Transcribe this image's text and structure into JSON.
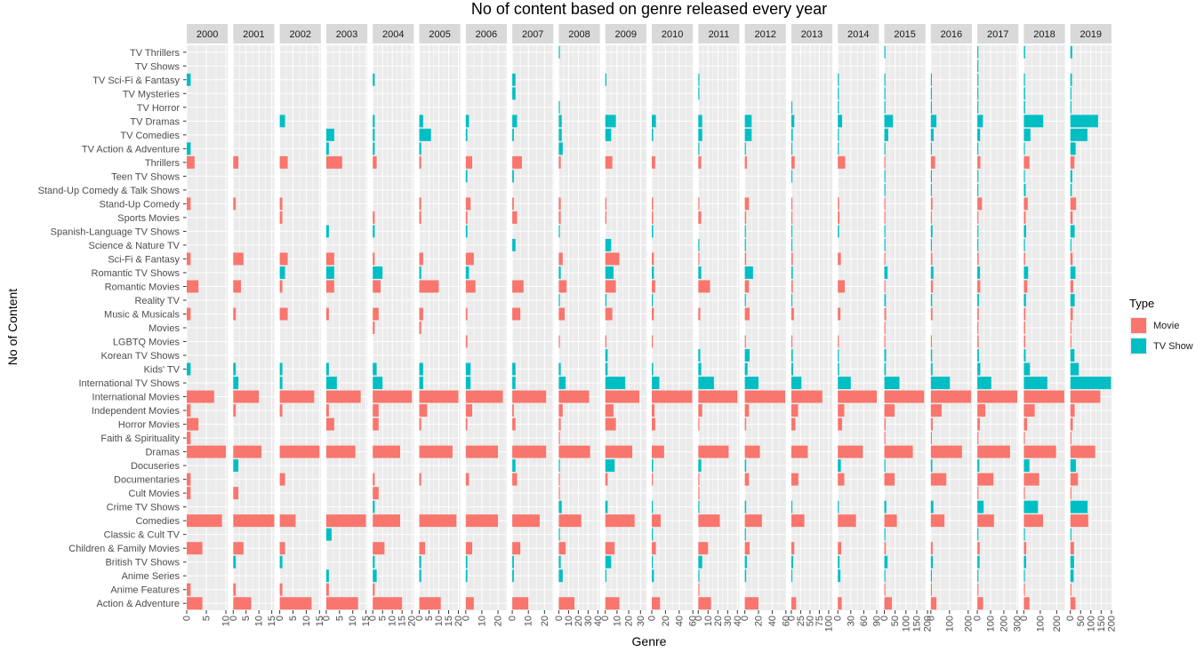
{
  "chart_data": {
    "type": "bar",
    "title": "No of content based on genre released every year",
    "xlabel": "Genre",
    "ylabel": "No of Content",
    "legend": {
      "title": "Type",
      "position": "right",
      "entries": [
        "Movie",
        "TV Show"
      ]
    },
    "colors": {
      "Movie": "#F8766D",
      "TV Show": "#00BFC4",
      "panel": "#EBEBEB",
      "strip": "#D9D9D9",
      "grid": "#FFFFFF"
    },
    "orientation": "horizontal-bars",
    "facets": [
      "2000",
      "2001",
      "2002",
      "2003",
      "2004",
      "2005",
      "2006",
      "2007",
      "2008",
      "2009",
      "2010",
      "2011",
      "2012",
      "2013",
      "2014",
      "2015",
      "2016",
      "2017",
      "2018",
      "2019"
    ],
    "categories": [
      "Action & Adventure",
      "Anime Features",
      "Anime Series",
      "British TV Shows",
      "Children & Family Movies",
      "Classic & Cult TV",
      "Comedies",
      "Crime TV Shows",
      "Cult Movies",
      "Documentaries",
      "Docuseries",
      "Dramas",
      "Faith & Spirituality",
      "Horror Movies",
      "Independent Movies",
      "International Movies",
      "International TV Shows",
      "Kids' TV",
      "Korean TV Shows",
      "LGBTQ Movies",
      "Movies",
      "Music & Musicals",
      "Reality TV",
      "Romantic Movies",
      "Romantic TV Shows",
      "Sci-Fi & Fantasy",
      "Science & Nature TV",
      "Spanish-Language TV Shows",
      "Sports Movies",
      "Stand-Up Comedy",
      "Stand-Up Comedy & Talk Shows",
      "Teen TV Shows",
      "Thrillers",
      "TV Action & Adventure",
      "TV Comedies",
      "TV Dramas",
      "TV Horror",
      "TV Mysteries",
      "TV Sci-Fi & Fantasy",
      "TV Shows",
      "TV Thrillers"
    ],
    "type_of": [
      "Movie",
      "Movie",
      "TV Show",
      "TV Show",
      "Movie",
      "TV Show",
      "Movie",
      "TV Show",
      "Movie",
      "Movie",
      "TV Show",
      "Movie",
      "Movie",
      "Movie",
      "Movie",
      "Movie",
      "TV Show",
      "TV Show",
      "TV Show",
      "Movie",
      "Movie",
      "Movie",
      "TV Show",
      "Movie",
      "TV Show",
      "Movie",
      "TV Show",
      "TV Show",
      "Movie",
      "Movie",
      "TV Show",
      "TV Show",
      "Movie",
      "TV Show",
      "TV Show",
      "TV Show",
      "TV Show",
      "TV Show",
      "TV Show",
      "TV Show",
      "TV Show"
    ],
    "panel_ticks": [
      [
        0,
        5,
        10
      ],
      [
        0,
        5,
        10,
        15
      ],
      [
        0,
        5,
        10,
        15
      ],
      [
        0,
        5,
        10,
        15
      ],
      [
        0,
        5,
        10,
        15,
        20
      ],
      [
        0,
        5,
        10,
        15,
        20
      ],
      [
        0,
        10,
        20
      ],
      [
        0,
        10,
        20
      ],
      [
        0,
        10,
        20,
        30,
        40
      ],
      [
        0,
        10,
        20,
        30
      ],
      [
        0,
        20,
        40,
        60
      ],
      [
        0,
        10,
        20,
        30,
        40
      ],
      [
        0,
        20,
        40,
        60
      ],
      [
        0,
        25,
        50,
        75,
        100
      ],
      [
        0,
        30,
        60,
        90
      ],
      [
        0,
        50,
        100,
        150,
        200
      ],
      [
        0,
        100,
        200
      ],
      [
        0,
        100,
        200,
        300
      ],
      [
        0,
        100,
        200
      ],
      [
        0,
        50,
        100,
        150,
        200
      ]
    ],
    "panel_xlim": [
      [
        0,
        10.5
      ],
      [
        0,
        16.0
      ],
      [
        0,
        15.5
      ],
      [
        0,
        15.5
      ],
      [
        0,
        21.0
      ],
      [
        0,
        21.0
      ],
      [
        0,
        25.5
      ],
      [
        0,
        25.5
      ],
      [
        0,
        42.0
      ],
      [
        0,
        35.0
      ],
      [
        0,
        60.0
      ],
      [
        0,
        42.0
      ],
      [
        0,
        60.0
      ],
      [
        0,
        110.0
      ],
      [
        0,
        95.0
      ],
      [
        0,
        190.0
      ],
      [
        0,
        220.0
      ],
      [
        0,
        310.0
      ],
      [
        0,
        250.0
      ],
      [
        0,
        200.0
      ]
    ],
    "values": [
      [
        4,
        1,
        0,
        0,
        4,
        0,
        9,
        0,
        1,
        1,
        0,
        10,
        1,
        3,
        1,
        7,
        0,
        1,
        0,
        0,
        0,
        1,
        0,
        3,
        0,
        1,
        0,
        0,
        0,
        1,
        0,
        0,
        2,
        1,
        0,
        0,
        0,
        0,
        1,
        0,
        0
      ],
      [
        7,
        1,
        0,
        1,
        4,
        0,
        16,
        0,
        2,
        0,
        2,
        11,
        0,
        0,
        1,
        10,
        2,
        1,
        0,
        0,
        0,
        1,
        0,
        3,
        0,
        4,
        0,
        0,
        0,
        1,
        0,
        0,
        2,
        0,
        0,
        0,
        0,
        0,
        0,
        0,
        0
      ],
      [
        12,
        1,
        0,
        1,
        2,
        0,
        6,
        0,
        0,
        2,
        0,
        15,
        0,
        0,
        1,
        13,
        1,
        1,
        0,
        0,
        0,
        3,
        0,
        1,
        2,
        3,
        0,
        0,
        1,
        1,
        0,
        0,
        3,
        0,
        0,
        2,
        0,
        0,
        0,
        0,
        0
      ],
      [
        12,
        1,
        1,
        0,
        0,
        2,
        15,
        0,
        0,
        0,
        0,
        11,
        0,
        3,
        1,
        13,
        4,
        1,
        0,
        0,
        0,
        1,
        0,
        3,
        3,
        3,
        0,
        1,
        0,
        0,
        0,
        0,
        6,
        1,
        3,
        0,
        0,
        0,
        0,
        0,
        0
      ],
      [
        15,
        1,
        2,
        1,
        6,
        0,
        14,
        1,
        3,
        1,
        0,
        14,
        0,
        3,
        3,
        20,
        5,
        2,
        0,
        0,
        1,
        3,
        0,
        4,
        5,
        1,
        0,
        1,
        1,
        0,
        0,
        0,
        2,
        1,
        1,
        1,
        0,
        0,
        1,
        0,
        0
      ],
      [
        11,
        0,
        1,
        1,
        3,
        0,
        19,
        0,
        0,
        1,
        0,
        17,
        0,
        1,
        4,
        20,
        2,
        2,
        0,
        0,
        1,
        2,
        0,
        10,
        1,
        2,
        0,
        0,
        1,
        1,
        0,
        0,
        1,
        1,
        6,
        2,
        0,
        0,
        0,
        0,
        0
      ],
      [
        5,
        0,
        1,
        1,
        4,
        0,
        20,
        0,
        0,
        2,
        0,
        20,
        0,
        1,
        4,
        23,
        3,
        3,
        0,
        1,
        0,
        1,
        0,
        6,
        2,
        5,
        0,
        1,
        1,
        3,
        0,
        1,
        4,
        0,
        1,
        2,
        0,
        0,
        0,
        0,
        0
      ],
      [
        10,
        0,
        1,
        1,
        5,
        0,
        17,
        0,
        0,
        3,
        2,
        21,
        0,
        2,
        1,
        21,
        2,
        2,
        0,
        0,
        0,
        5,
        0,
        7,
        0,
        0,
        2,
        0,
        3,
        1,
        0,
        1,
        6,
        0,
        1,
        3,
        0,
        2,
        2,
        0,
        0
      ],
      [
        16,
        0,
        4,
        2,
        7,
        1,
        23,
        3,
        1,
        1,
        1,
        32,
        1,
        2,
        4,
        31,
        7,
        2,
        0,
        1,
        0,
        6,
        1,
        8,
        2,
        4,
        0,
        1,
        2,
        2,
        0,
        0,
        2,
        4,
        3,
        3,
        1,
        0,
        0,
        0,
        1
      ],
      [
        12,
        0,
        1,
        5,
        8,
        0,
        25,
        2,
        0,
        2,
        8,
        23,
        0,
        9,
        7,
        29,
        17,
        2,
        2,
        1,
        0,
        6,
        1,
        9,
        7,
        12,
        5,
        0,
        1,
        1,
        0,
        0,
        6,
        0,
        5,
        9,
        0,
        0,
        1,
        0,
        0
      ],
      [
        12,
        0,
        3,
        1,
        6,
        1,
        13,
        1,
        0,
        1,
        2,
        18,
        0,
        5,
        4,
        59,
        11,
        2,
        0,
        1,
        0,
        3,
        1,
        5,
        3,
        3,
        0,
        2,
        2,
        2,
        0,
        0,
        5,
        0,
        2,
        6,
        0,
        0,
        0,
        0,
        0
      ],
      [
        13,
        1,
        1,
        4,
        10,
        0,
        22,
        1,
        1,
        1,
        3,
        31,
        0,
        1,
        4,
        40,
        16,
        3,
        2,
        0,
        0,
        2,
        0,
        12,
        3,
        1,
        1,
        0,
        3,
        1,
        0,
        0,
        3,
        1,
        4,
        4,
        0,
        1,
        1,
        0,
        0
      ],
      [
        20,
        0,
        2,
        3,
        7,
        1,
        25,
        2,
        0,
        6,
        2,
        22,
        0,
        2,
        6,
        59,
        20,
        4,
        7,
        1,
        0,
        7,
        1,
        6,
        12,
        2,
        1,
        1,
        2,
        6,
        0,
        0,
        3,
        1,
        10,
        10,
        0,
        0,
        0,
        0,
        0
      ],
      [
        13,
        0,
        2,
        5,
        8,
        0,
        35,
        2,
        0,
        19,
        0,
        44,
        0,
        11,
        18,
        83,
        27,
        5,
        4,
        2,
        0,
        7,
        1,
        4,
        4,
        4,
        1,
        1,
        3,
        3,
        0,
        1,
        9,
        1,
        4,
        8,
        1,
        0,
        0,
        0,
        0
      ],
      [
        9,
        0,
        6,
        4,
        8,
        0,
        42,
        1,
        0,
        15,
        7,
        58,
        0,
        10,
        15,
        90,
        30,
        3,
        2,
        1,
        0,
        6,
        0,
        16,
        0,
        7,
        0,
        3,
        4,
        3,
        0,
        0,
        17,
        2,
        2,
        10,
        2,
        2,
        2,
        0,
        0
      ],
      [
        35,
        1,
        3,
        15,
        7,
        1,
        58,
        9,
        0,
        48,
        2,
        132,
        2,
        6,
        48,
        184,
        70,
        7,
        8,
        1,
        1,
        8,
        7,
        5,
        15,
        5,
        3,
        5,
        4,
        4,
        1,
        1,
        5,
        2,
        18,
        40,
        3,
        2,
        1,
        0,
        2
      ],
      [
        30,
        3,
        4,
        11,
        10,
        0,
        73,
        14,
        0,
        83,
        8,
        167,
        1,
        10,
        58,
        215,
        102,
        9,
        7,
        3,
        0,
        9,
        7,
        11,
        14,
        8,
        2,
        9,
        6,
        9,
        1,
        2,
        23,
        2,
        15,
        30,
        3,
        3,
        1,
        0,
        0
      ],
      [
        43,
        3,
        6,
        17,
        18,
        3,
        126,
        48,
        2,
        122,
        15,
        247,
        8,
        19,
        60,
        301,
        105,
        22,
        12,
        10,
        6,
        11,
        12,
        22,
        20,
        10,
        4,
        4,
        7,
        35,
        3,
        3,
        23,
        7,
        21,
        42,
        5,
        5,
        6,
        2,
        3
      ],
      [
        34,
        3,
        6,
        14,
        15,
        3,
        117,
        86,
        2,
        93,
        34,
        196,
        5,
        20,
        66,
        246,
        143,
        37,
        11,
        9,
        8,
        10,
        13,
        21,
        26,
        8,
        7,
        14,
        11,
        24,
        11,
        5,
        34,
        3,
        40,
        118,
        8,
        8,
        7,
        0,
        8
      ],
      [
        25,
        4,
        16,
        18,
        18,
        5,
        87,
        84,
        1,
        37,
        27,
        121,
        4,
        12,
        21,
        146,
        198,
        41,
        20,
        4,
        4,
        12,
        21,
        14,
        25,
        11,
        3,
        21,
        11,
        28,
        7,
        9,
        20,
        26,
        83,
        135,
        4,
        5,
        8,
        0,
        9
      ]
    ]
  }
}
